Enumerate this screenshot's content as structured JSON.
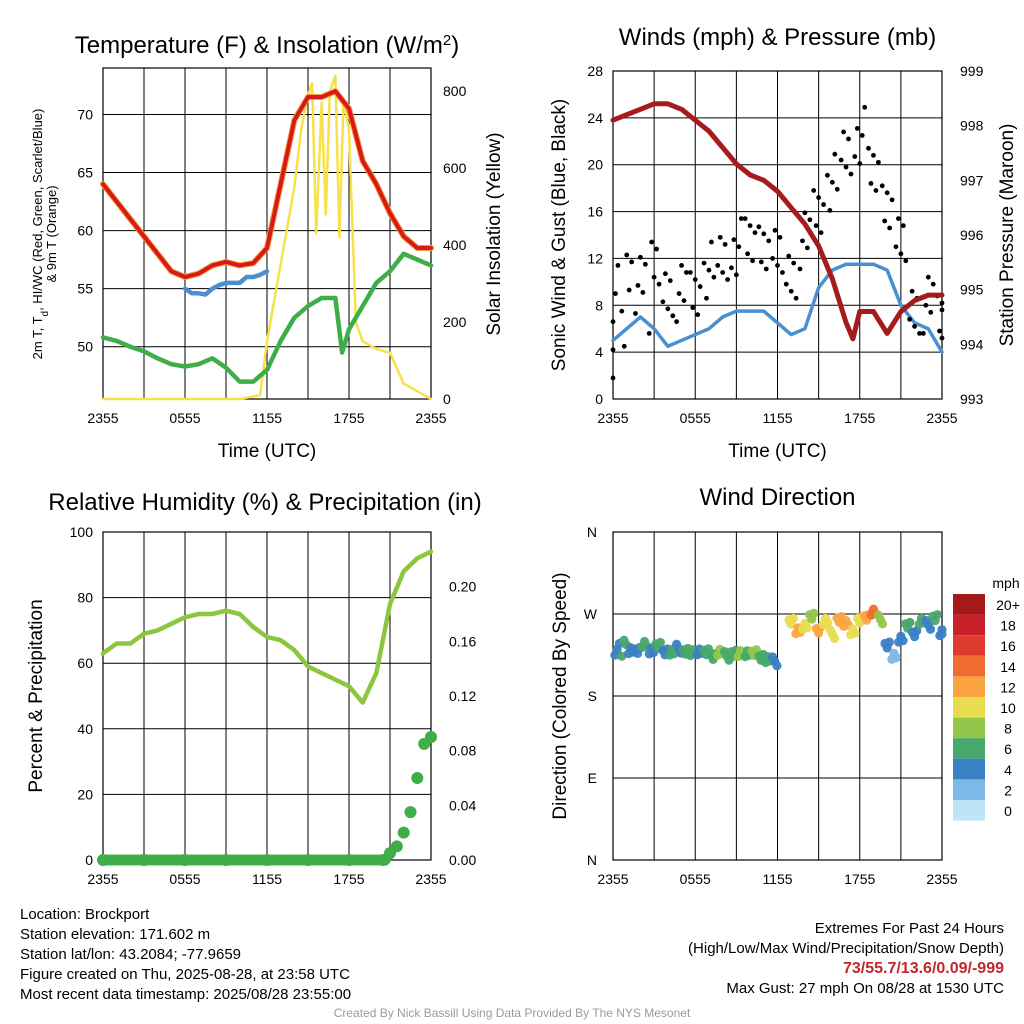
{
  "chart_data": [
    {
      "type": "line",
      "title": "Temperature (F) & Insolation (W/m",
      "title_sup": "2",
      "title_end": ")",
      "xlabel": "Time (UTC)",
      "ylabel_lines": [
        "2m T, T",
        "d",
        ", HI/WC (Red, Green, Scarlet/Blue)",
        "& 9m T (Orange)"
      ],
      "ylabel2": "Solar Insolation (Yellow)",
      "x_ticks": [
        "2355",
        "0555",
        "1155",
        "1755",
        "2355"
      ],
      "ylim": [
        45.5,
        74
      ],
      "y_ticks": [
        50,
        55,
        60,
        65,
        70
      ],
      "y2lim": [
        0,
        860
      ],
      "y2_ticks": [
        0,
        200,
        400,
        600,
        800
      ],
      "series": [
        {
          "name": "2m T",
          "color": "#d7191c",
          "x": [
            0,
            1,
            2,
            3,
            4,
            5,
            6,
            7,
            8,
            9,
            10,
            11,
            12,
            13,
            14,
            15,
            16,
            17,
            18,
            19,
            20,
            21,
            22,
            23,
            24
          ],
          "values": [
            64,
            62.5,
            61,
            59.5,
            58,
            56.5,
            56,
            56.3,
            57,
            57.3,
            57,
            57.2,
            58.5,
            64,
            69.5,
            71.5,
            71.5,
            72,
            70.5,
            66,
            64,
            61.5,
            59.5,
            58.5,
            58.5
          ]
        },
        {
          "name": "Td",
          "color": "#3fae49",
          "x": [
            0,
            1,
            2,
            3,
            4,
            5,
            6,
            7,
            8,
            9,
            10,
            11,
            12,
            13,
            14,
            15,
            16,
            17,
            17.5,
            18,
            19,
            20,
            21,
            22,
            23,
            24
          ],
          "values": [
            50.8,
            50.5,
            50,
            49.6,
            49,
            48.5,
            48.3,
            48.5,
            49,
            48.2,
            47,
            47,
            48,
            50.5,
            52.5,
            53.5,
            54.2,
            54.2,
            49.5,
            51.5,
            53.5,
            55.5,
            56.5,
            58,
            57.5,
            57
          ]
        },
        {
          "name": "WC",
          "color": "#4a90d0",
          "x": [
            6,
            6.5,
            7,
            7.5,
            8,
            8.5,
            9,
            9.5,
            10,
            10.5,
            11,
            11.5,
            12
          ],
          "values": [
            55,
            54.6,
            54.6,
            54.5,
            55,
            55.3,
            55.5,
            55.5,
            55.5,
            56,
            56,
            56.2,
            56.5
          ]
        },
        {
          "name": "Solar",
          "color": "#f7e04a",
          "x": [
            0,
            10,
            11.5,
            12,
            12.5,
            13,
            13.5,
            14,
            14.5,
            15,
            15.3,
            15.6,
            16,
            16.3,
            16.6,
            17,
            17.3,
            17.6,
            18,
            18.5,
            19,
            20,
            21,
            22,
            23,
            24
          ],
          "values": [
            0,
            0,
            10,
            150,
            250,
            350,
            450,
            550,
            700,
            790,
            820,
            430,
            770,
            480,
            800,
            840,
            420,
            780,
            700,
            200,
            150,
            130,
            120,
            40,
            20,
            0
          ]
        }
      ]
    },
    {
      "type": "line",
      "title": "Winds (mph) & Pressure (mb)",
      "xlabel": "Time (UTC)",
      "ylabel": "Sonic Wind & Gust (Blue, Black)",
      "ylabel2": "Station Pressure (Maroon)",
      "x_ticks": [
        "2355",
        "0555",
        "1155",
        "1755",
        "2355"
      ],
      "ylim": [
        0,
        28
      ],
      "y_ticks": [
        0,
        4,
        8,
        12,
        16,
        20,
        24,
        28
      ],
      "y2lim": [
        993,
        999
      ],
      "y2_ticks": [
        993,
        994,
        995,
        996,
        997,
        998,
        999
      ],
      "series": [
        {
          "name": "Sonic Wind",
          "color": "#4a90d0",
          "x": [
            0,
            1,
            2,
            3,
            4,
            5,
            6,
            7,
            8,
            9,
            10,
            11,
            12,
            13,
            14,
            15,
            16,
            17,
            18,
            19,
            20,
            21,
            22,
            23,
            24
          ],
          "values": [
            5,
            6,
            7,
            6,
            4.5,
            5,
            5.5,
            6,
            7,
            7.5,
            7.5,
            7.5,
            6.5,
            5.5,
            6,
            9.5,
            11,
            11.5,
            11.5,
            11.5,
            11,
            8,
            6.5,
            6,
            4
          ]
        },
        {
          "name": "Gust",
          "color": "#000000",
          "style": "points",
          "x": [
            0,
            1,
            2,
            3,
            4,
            5,
            6,
            7,
            8,
            9,
            10,
            11,
            12,
            13,
            14,
            15,
            16,
            17,
            18,
            19,
            20,
            21,
            22,
            23,
            24
          ],
          "values": [
            9,
            10.5,
            11.5,
            11,
            9.5,
            9,
            9,
            11,
            12,
            13,
            13,
            13.5,
            12,
            11,
            13.5,
            16,
            18.5,
            21,
            22.5,
            19,
            17,
            13,
            8,
            8,
            7
          ]
        },
        {
          "name": "Station Pressure",
          "color": "#a61c1c",
          "axis": "right",
          "x": [
            0,
            1,
            2,
            3,
            4,
            5,
            6,
            7,
            8,
            9,
            10,
            11,
            12,
            13,
            14,
            15,
            16,
            17,
            17.5,
            18,
            19,
            20,
            21,
            22,
            23,
            24
          ],
          "values": [
            998.1,
            998.2,
            998.3,
            998.4,
            998.4,
            998.3,
            998.1,
            997.9,
            997.6,
            997.3,
            997.1,
            997.0,
            996.8,
            996.5,
            996.2,
            995.8,
            995.2,
            994.4,
            994.1,
            994.6,
            994.6,
            994.2,
            994.6,
            994.8,
            994.9,
            994.9
          ]
        }
      ]
    },
    {
      "type": "line",
      "title": "Relative Humidity (%) & Precipitation (in)",
      "xlabel": "",
      "ylabel": "Percent & Precipitation",
      "x_ticks": [
        "2355",
        "0555",
        "1155",
        "1755",
        "2355"
      ],
      "ylim": [
        0,
        100
      ],
      "y_ticks": [
        0,
        20,
        40,
        60,
        80,
        100
      ],
      "y2lim": [
        0,
        0.24
      ],
      "y2_ticks": [
        "0.00",
        "0.04",
        "0.08",
        "0.12",
        "0.16",
        "0.20"
      ],
      "series": [
        {
          "name": "RH",
          "color": "#8cc63f",
          "x": [
            0,
            1,
            2,
            3,
            4,
            5,
            6,
            7,
            8,
            9,
            10,
            11,
            12,
            13,
            14,
            15,
            16,
            17,
            18,
            19,
            20,
            21,
            22,
            23,
            24
          ],
          "values": [
            63,
            66,
            66,
            69,
            70,
            72,
            74,
            75,
            75,
            76,
            75,
            71,
            68,
            67,
            64,
            59,
            57,
            55,
            53,
            48,
            57,
            78,
            88,
            92,
            94
          ]
        },
        {
          "name": "Precipitation",
          "color": "#3fae49",
          "axis": "right",
          "style": "points",
          "x": [
            0,
            3,
            6,
            9,
            12,
            15,
            18,
            20.5,
            21,
            21.5,
            22,
            22.5,
            23,
            23.5,
            24
          ],
          "values": [
            0,
            0,
            0,
            0,
            0,
            0,
            0,
            0,
            0.005,
            0.01,
            0.02,
            0.035,
            0.06,
            0.085,
            0.09
          ]
        }
      ]
    },
    {
      "type": "scatter",
      "title": "Wind Direction",
      "ylabel": "Direction (Colored By Speed)",
      "x_ticks": [
        "2355",
        "0555",
        "1155",
        "1755",
        "2355"
      ],
      "y_ticks": [
        "N",
        "E",
        "S",
        "W",
        "N"
      ],
      "ylim_deg": [
        0,
        360
      ],
      "points": [
        {
          "x": 0.3,
          "dir": 236,
          "speed": 5
        },
        {
          "x": 0.8,
          "dir": 238,
          "speed": 6
        },
        {
          "x": 1.3,
          "dir": 233,
          "speed": 5
        },
        {
          "x": 1.8,
          "dir": 230,
          "speed": 4
        },
        {
          "x": 2.3,
          "dir": 235,
          "speed": 6
        },
        {
          "x": 2.8,
          "dir": 231,
          "speed": 5
        },
        {
          "x": 3.3,
          "dir": 234,
          "speed": 7
        },
        {
          "x": 3.8,
          "dir": 230,
          "speed": 4
        },
        {
          "x": 4.3,
          "dir": 228,
          "speed": 6
        },
        {
          "x": 4.8,
          "dir": 232,
          "speed": 5
        },
        {
          "x": 5.3,
          "dir": 229,
          "speed": 7
        },
        {
          "x": 5.8,
          "dir": 226,
          "speed": 6
        },
        {
          "x": 6.3,
          "dir": 230,
          "speed": 5
        },
        {
          "x": 6.8,
          "dir": 227,
          "speed": 7
        },
        {
          "x": 7.3,
          "dir": 225,
          "speed": 6
        },
        {
          "x": 7.8,
          "dir": 228,
          "speed": 8
        },
        {
          "x": 8.3,
          "dir": 224,
          "speed": 7
        },
        {
          "x": 8.8,
          "dir": 227,
          "speed": 6
        },
        {
          "x": 9.3,
          "dir": 225,
          "speed": 8
        },
        {
          "x": 9.8,
          "dir": 228,
          "speed": 7
        },
        {
          "x": 10.3,
          "dir": 226,
          "speed": 8
        },
        {
          "x": 10.8,
          "dir": 224,
          "speed": 6
        },
        {
          "x": 11.3,
          "dir": 220,
          "speed": 7
        },
        {
          "x": 11.8,
          "dir": 218,
          "speed": 5
        },
        {
          "x": 13.0,
          "dir": 262,
          "speed": 10
        },
        {
          "x": 13.5,
          "dir": 250,
          "speed": 12
        },
        {
          "x": 14.0,
          "dir": 258,
          "speed": 11
        },
        {
          "x": 14.5,
          "dir": 266,
          "speed": 9
        },
        {
          "x": 15.0,
          "dir": 254,
          "speed": 12
        },
        {
          "x": 15.5,
          "dir": 262,
          "speed": 11
        },
        {
          "x": 16.0,
          "dir": 248,
          "speed": 10
        },
        {
          "x": 16.5,
          "dir": 264,
          "speed": 13
        },
        {
          "x": 17.0,
          "dir": 258,
          "speed": 12
        },
        {
          "x": 17.5,
          "dir": 252,
          "speed": 10
        },
        {
          "x": 18.0,
          "dir": 262,
          "speed": 11
        },
        {
          "x": 18.5,
          "dir": 268,
          "speed": 12
        },
        {
          "x": 19.0,
          "dir": 272,
          "speed": 14
        },
        {
          "x": 19.5,
          "dir": 264,
          "speed": 9
        },
        {
          "x": 20.0,
          "dir": 236,
          "speed": 4
        },
        {
          "x": 20.5,
          "dir": 222,
          "speed": 3
        },
        {
          "x": 21.0,
          "dir": 244,
          "speed": 5
        },
        {
          "x": 21.5,
          "dir": 256,
          "speed": 6
        },
        {
          "x": 22.0,
          "dir": 250,
          "speed": 4
        },
        {
          "x": 22.5,
          "dir": 262,
          "speed": 7
        },
        {
          "x": 23.0,
          "dir": 258,
          "speed": 5
        },
        {
          "x": 23.5,
          "dir": 266,
          "speed": 6
        },
        {
          "x": 24.0,
          "dir": 248,
          "speed": 4
        }
      ],
      "colorbar": {
        "title": "mph",
        "labels": [
          "20+",
          "18",
          "16",
          "14",
          "12",
          "10",
          "8",
          "6",
          "4",
          "2",
          "0"
        ],
        "colors": [
          "#a31a1a",
          "#c8202a",
          "#dd3b2e",
          "#f26b30",
          "#fba443",
          "#e8dc4f",
          "#93c74b",
          "#48a86b",
          "#3a80c4",
          "#7eb8e6",
          "#bfe3f7"
        ]
      }
    }
  ],
  "info": {
    "location": "Location: Brockport",
    "elevation": "Station elevation: 171.602 m",
    "latlon": "Station lat/lon: 43.2084; -77.9659",
    "created": "Figure created on Thu, 2025-08-28, at 23:58 UTC",
    "recent": "Most recent data timestamp: 2025/08/28 23:55:00"
  },
  "extremes": {
    "heading": "Extremes For Past 24 Hours",
    "subheading": "(High/Low/Max Wind/Precipitation/Snow Depth)",
    "values": "73/55.7/13.6/0.09/-999",
    "gust": "Max Gust: 27 mph On 08/28 at 1530 UTC"
  },
  "credit": "Created By Nick Bassill Using Data Provided By The NYS Mesonet"
}
